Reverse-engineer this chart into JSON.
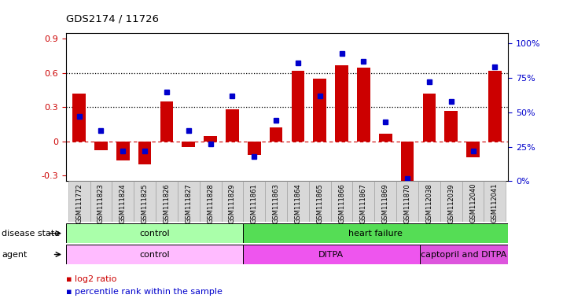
{
  "title": "GDS2174 / 11726",
  "samples": [
    "GSM111772",
    "GSM111823",
    "GSM111824",
    "GSM111825",
    "GSM111826",
    "GSM111827",
    "GSM111828",
    "GSM111829",
    "GSM111861",
    "GSM111863",
    "GSM111864",
    "GSM111865",
    "GSM111866",
    "GSM111867",
    "GSM111869",
    "GSM111870",
    "GSM112038",
    "GSM112039",
    "GSM112040",
    "GSM112041"
  ],
  "log2_ratio": [
    0.42,
    -0.08,
    -0.17,
    -0.2,
    0.35,
    -0.05,
    0.05,
    0.28,
    -0.12,
    0.12,
    0.62,
    0.55,
    0.67,
    0.65,
    0.07,
    -0.45,
    0.42,
    0.27,
    -0.14,
    0.62
  ],
  "percentile_rank": [
    0.47,
    0.37,
    0.22,
    0.22,
    0.65,
    0.37,
    0.27,
    0.62,
    0.18,
    0.44,
    0.86,
    0.62,
    0.93,
    0.87,
    0.43,
    0.02,
    0.72,
    0.58,
    0.22,
    0.83
  ],
  "bar_color": "#cc0000",
  "dot_color": "#0000cc",
  "ylim_left": [
    -0.35,
    0.95
  ],
  "ylim_right": [
    0.0,
    1.075
  ],
  "yticks_left": [
    -0.3,
    0.0,
    0.3,
    0.6,
    0.9
  ],
  "ytick_labels_left": [
    "-0.3",
    "0",
    "0.3",
    "0.6",
    "0.9"
  ],
  "ytick_labels_right": [
    "0%",
    "25%",
    "50%",
    "75%",
    "100%"
  ],
  "yticks_right": [
    0.0,
    0.25,
    0.5,
    0.75,
    1.0
  ],
  "hlines": [
    0.3,
    0.6
  ],
  "disease_state_groups": [
    {
      "label": "control",
      "start": 0,
      "end": 8,
      "color": "#aaffaa"
    },
    {
      "label": "heart failure",
      "start": 8,
      "end": 20,
      "color": "#55dd55"
    }
  ],
  "agent_groups": [
    {
      "label": "control",
      "start": 0,
      "end": 8,
      "color": "#ffbbff"
    },
    {
      "label": "DITPA",
      "start": 8,
      "end": 16,
      "color": "#ee55ee"
    },
    {
      "label": "captopril and DITPA",
      "start": 16,
      "end": 20,
      "color": "#dd55dd"
    }
  ],
  "legend_items": [
    {
      "label": "log2 ratio",
      "color": "#cc0000"
    },
    {
      "label": "percentile rank within the sample",
      "color": "#0000cc"
    }
  ]
}
